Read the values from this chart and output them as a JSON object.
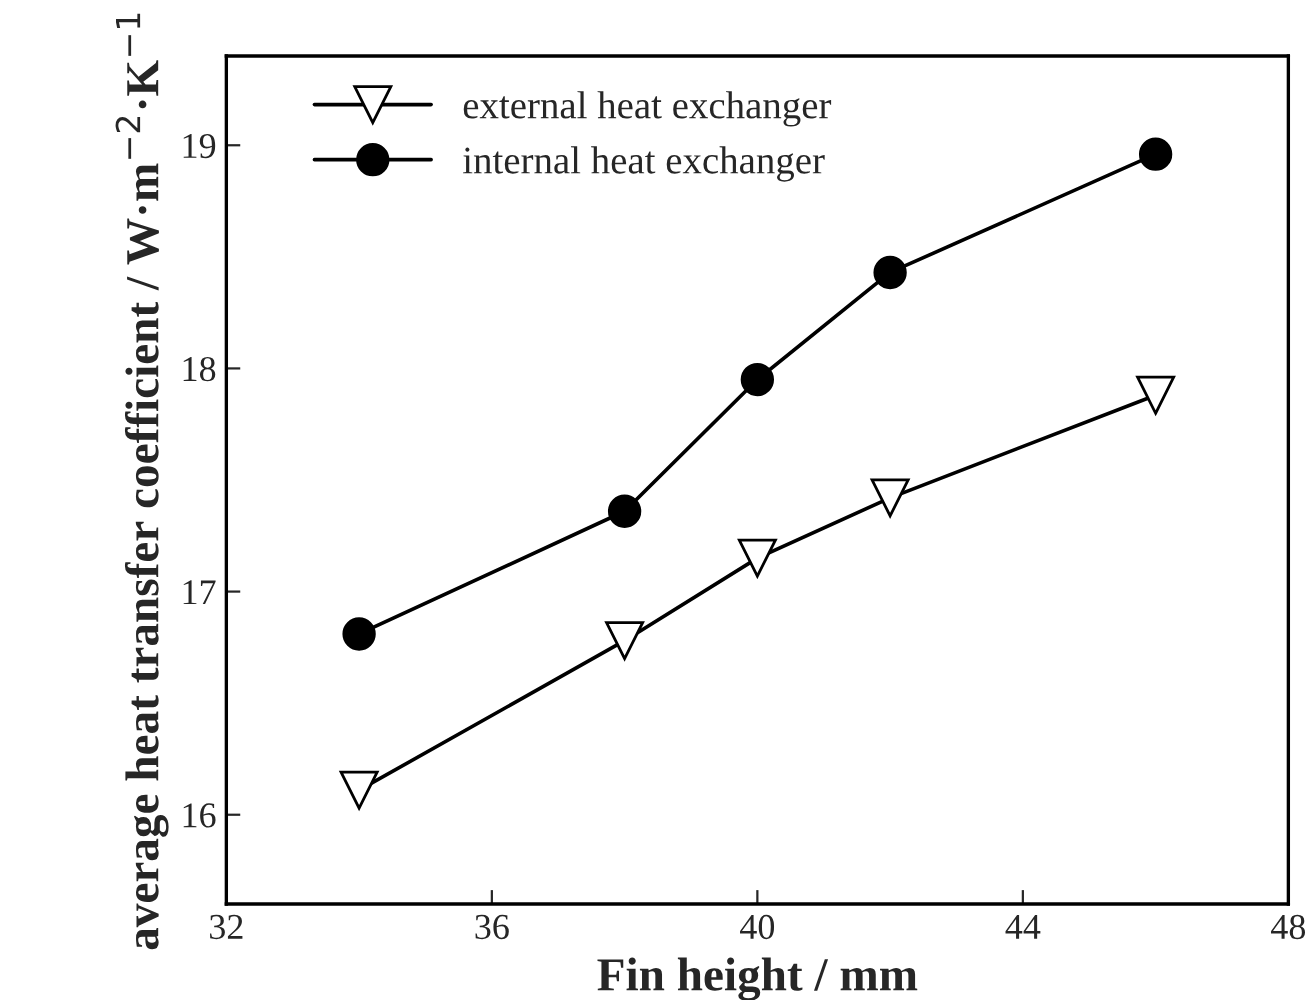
{
  "chart_data": {
    "type": "line",
    "xlabel": "Fin height / mm",
    "ylabel": "average heat transfer coefficient / W·m$^{−2}$·K$^{−1}$",
    "x": [
      34,
      38,
      40,
      42,
      46
    ],
    "series": [
      {
        "name": "external heat exchanger",
        "color": "#000000",
        "marker": "triangle",
        "values": [
          16.11,
          16.78,
          17.15,
          17.42,
          17.88
        ]
      },
      {
        "name": "internal heat exchanger",
        "color": "#000000",
        "marker": "circle",
        "values": [
          16.81,
          17.36,
          17.95,
          18.43,
          18.96
        ]
      }
    ],
    "xlim": [
      32,
      48
    ],
    "xticks": [
      32,
      36,
      40,
      44,
      48
    ],
    "ylim": [
      15.6,
      19.4
    ],
    "yticks": [
      16,
      17,
      18,
      19
    ],
    "line_style": "solid",
    "grid": false,
    "legend": "top left"
  }
}
